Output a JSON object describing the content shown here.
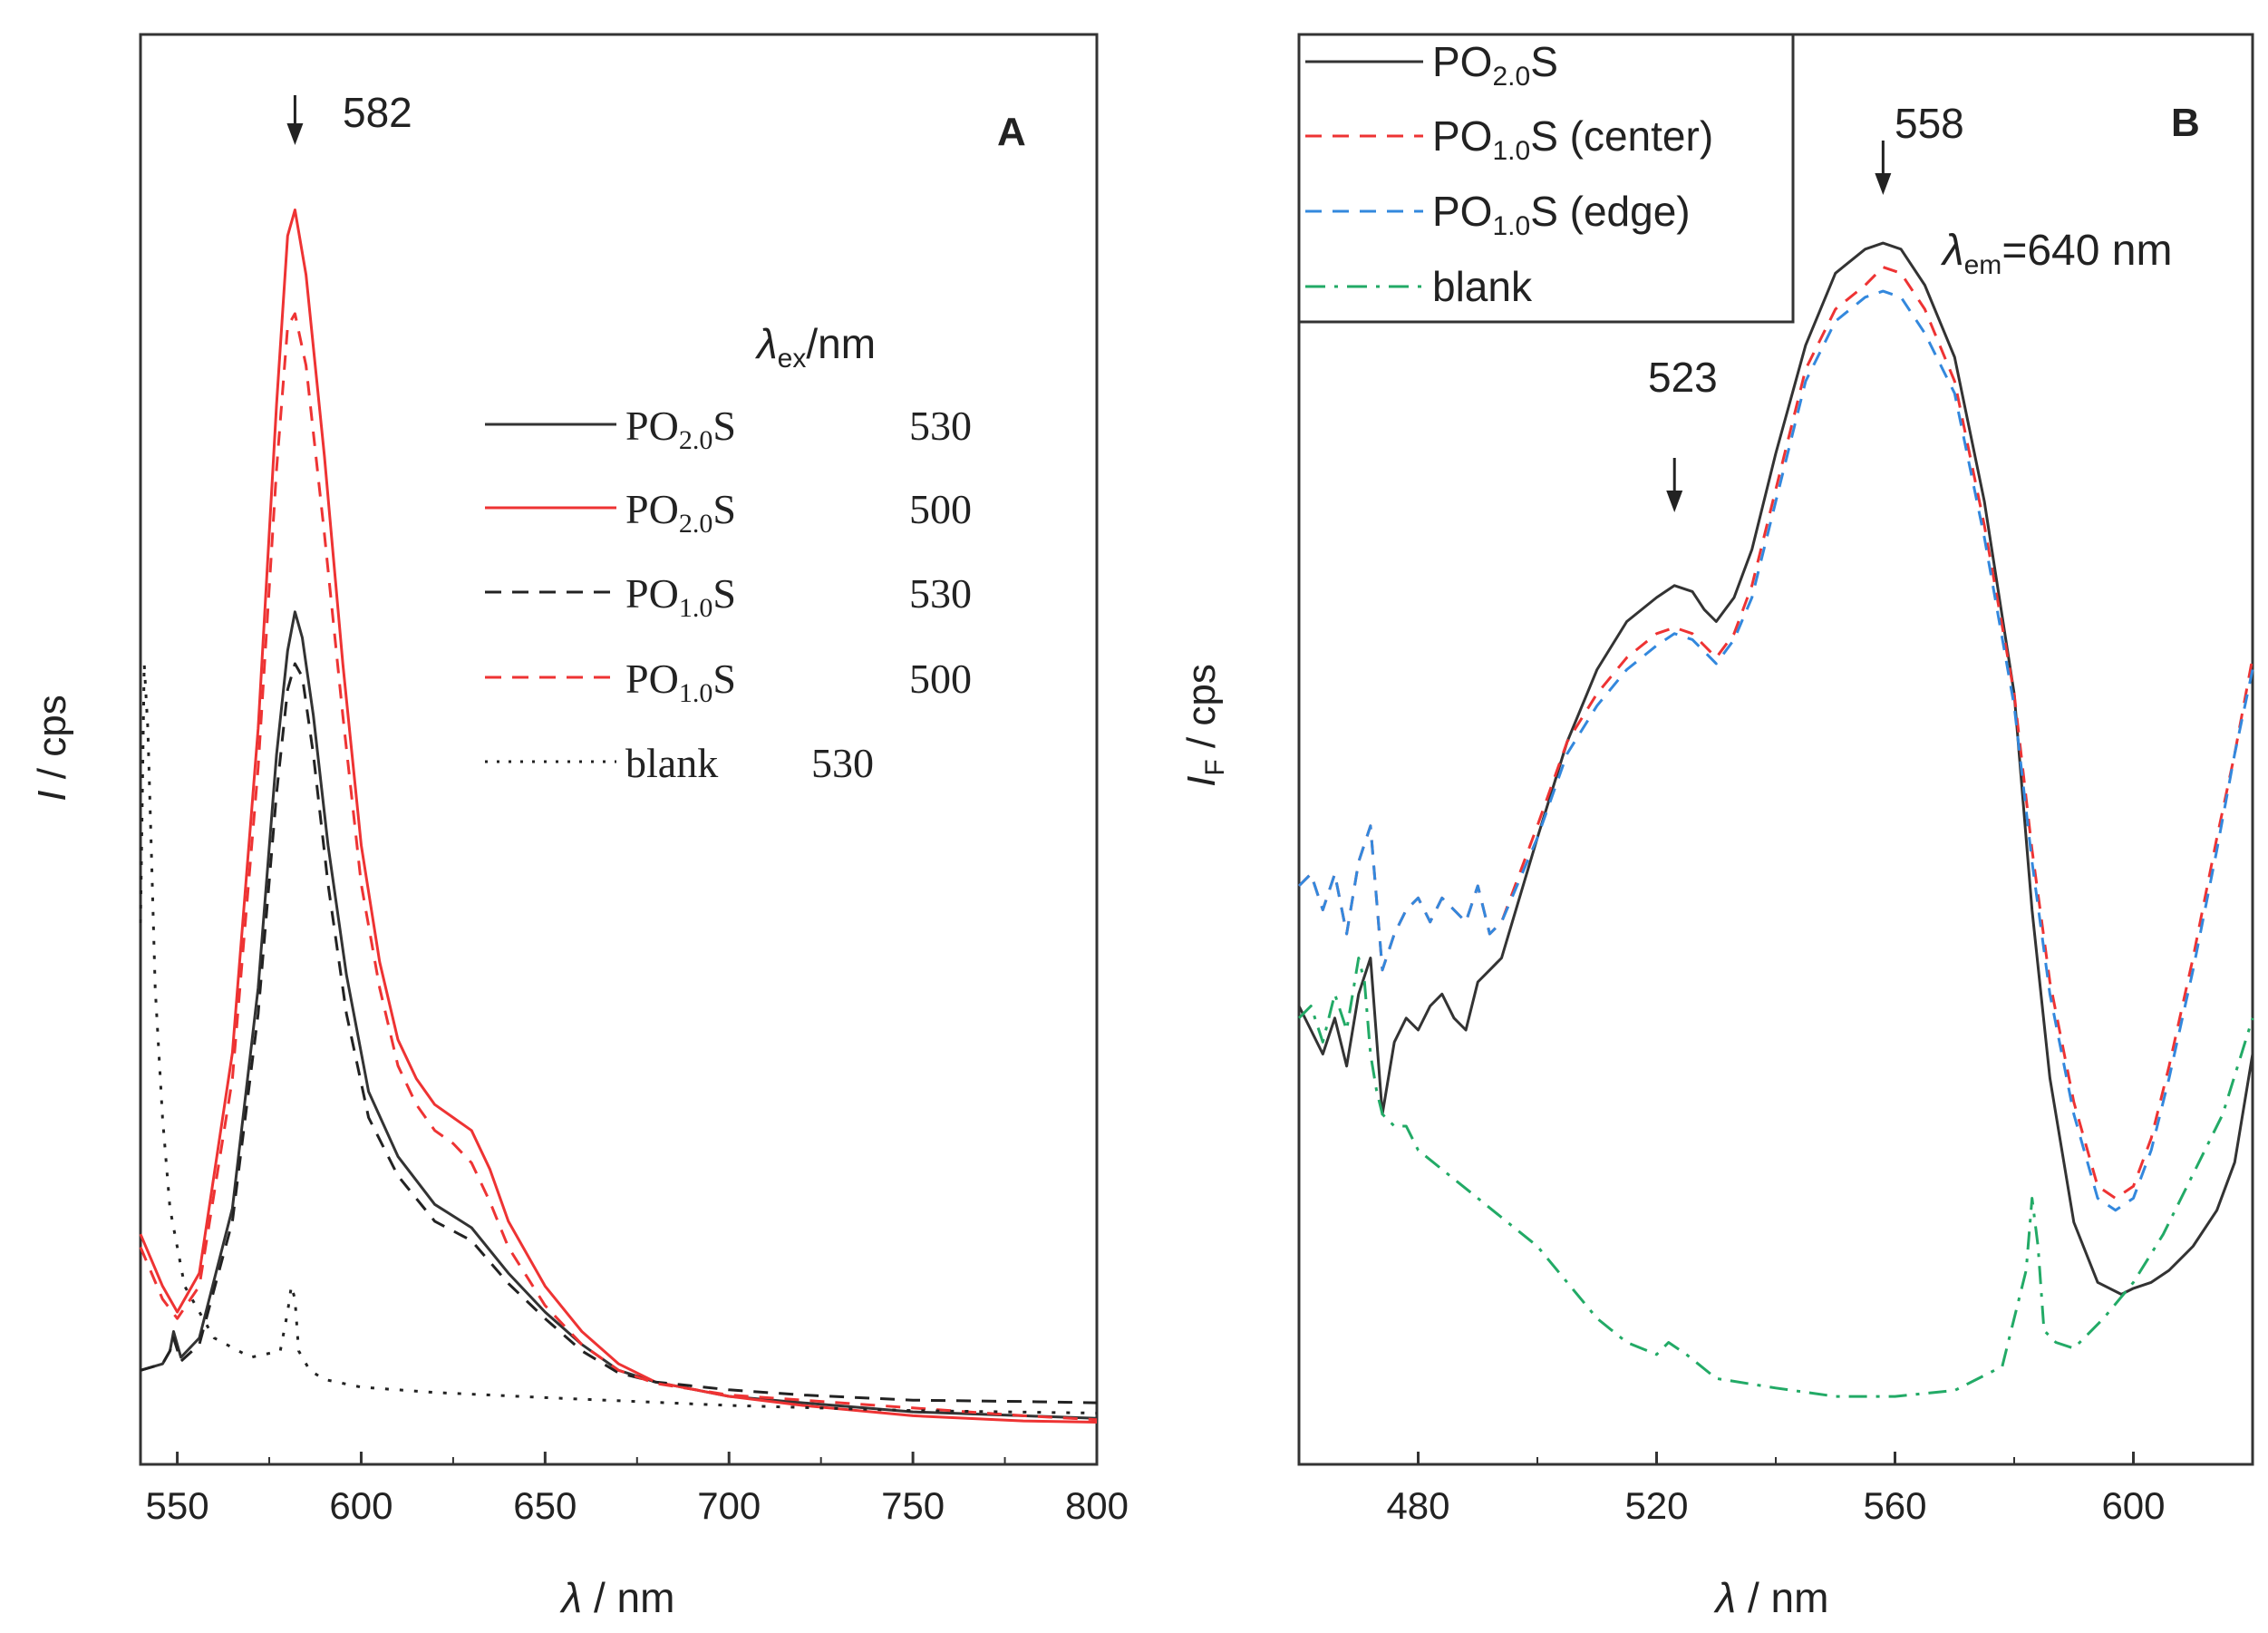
{
  "chart_data": [
    {
      "panel_letter": "A",
      "type": "line",
      "xlabel_symbol": "λ",
      "xlabel_unit": " / nm",
      "ylabel_symbol": "I",
      "ylabel_unit": " / cps",
      "xlim": [
        540,
        800
      ],
      "ylim": [
        0,
        100
      ],
      "y_tick_labels_shown": false,
      "x_ticks": [
        550,
        600,
        650,
        700,
        750,
        800
      ],
      "x_tick_labels": [
        "550",
        "600",
        "650",
        "700",
        "750",
        "800"
      ],
      "peak_annotation": {
        "text": "582",
        "x": 582
      },
      "legend_header": {
        "symbol": "λ",
        "sub": "ex",
        "text": "/nm"
      },
      "series": [
        {
          "name": "PO2.0S 530",
          "legend_main": "PO",
          "legend_sub": "2.0",
          "legend_tail": "S",
          "legend_value": "530",
          "color": "#333333",
          "dash": "solid",
          "x": [
            540,
            546,
            548,
            549,
            551,
            556,
            565,
            572,
            577,
            580,
            582,
            584,
            587,
            591,
            596,
            602,
            610,
            620,
            630,
            640,
            650,
            660,
            670,
            680,
            700,
            720,
            750,
            780,
            800
          ],
          "y": [
            5.5,
            6.0,
            7.0,
            8.5,
            6.5,
            8.0,
            18,
            35,
            53,
            61,
            64,
            62,
            56,
            46,
            36,
            27,
            22,
            18.3,
            16.5,
            13,
            10,
            7.5,
            5.5,
            4.6,
            3.5,
            3.0,
            2.3,
            2.0,
            1.8
          ]
        },
        {
          "name": "PO2.0S 500",
          "legend_main": "PO",
          "legend_sub": "2.0",
          "legend_tail": "S",
          "legend_value": "500",
          "color": "#ee3333",
          "dash": "solid",
          "x": [
            540,
            543,
            546,
            550,
            556,
            565,
            572,
            577,
            580,
            582,
            585,
            590,
            595,
            600,
            605,
            610,
            615,
            620,
            625,
            630,
            635,
            640,
            650,
            660,
            670,
            680,
            700,
            720,
            750,
            780,
            800
          ],
          "y": [
            16,
            14,
            12,
            10,
            13,
            30,
            55,
            80,
            93,
            95,
            90,
            76,
            60,
            46,
            37,
            31,
            28,
            26,
            25,
            24,
            21,
            17,
            12,
            8.5,
            6,
            4.6,
            3.5,
            2.8,
            2.0,
            1.6,
            1.5
          ]
        },
        {
          "name": "PO1.0S 530",
          "legend_main": "PO",
          "legend_sub": "1.0",
          "legend_tail": "S",
          "legend_value": "530",
          "color": "#222222",
          "dash": "8,6",
          "x": [
            540,
            546,
            548,
            549,
            551,
            556,
            565,
            572,
            577,
            580,
            582,
            584,
            587,
            591,
            596,
            602,
            610,
            620,
            630,
            640,
            650,
            660,
            670,
            680,
            700,
            720,
            750,
            780,
            800
          ],
          "y": [
            5.5,
            6.0,
            7.0,
            8.0,
            6.2,
            7.5,
            17,
            33,
            50,
            58,
            60,
            59,
            53,
            43,
            33,
            25,
            20.5,
            17,
            15.5,
            12.2,
            9.5,
            7.0,
            5.3,
            4.6,
            4.0,
            3.6,
            3.2,
            3.1,
            3.0
          ]
        },
        {
          "name": "PO1.0S 500",
          "legend_main": "PO",
          "legend_sub": "1.0",
          "legend_tail": "S",
          "legend_value": "500",
          "color": "#ee3333",
          "dash": "8,6",
          "x": [
            540,
            543,
            546,
            550,
            556,
            565,
            572,
            577,
            580,
            582,
            585,
            590,
            595,
            600,
            605,
            610,
            615,
            620,
            625,
            630,
            635,
            640,
            650,
            660,
            670,
            680,
            700,
            720,
            750,
            780,
            800
          ],
          "y": [
            15,
            13,
            11,
            9.5,
            12,
            28,
            52,
            75,
            86,
            87,
            83,
            70,
            56,
            43,
            35,
            29,
            26,
            24,
            23,
            21.5,
            18.5,
            15,
            10.5,
            7.5,
            5.5,
            4.5,
            3.6,
            3.2,
            2.6,
            2.0,
            1.7
          ]
        },
        {
          "name": "blank 530",
          "legend_main": "blank",
          "legend_sub": "",
          "legend_tail": "",
          "legend_value": "530",
          "color": "#222222",
          "dash": "2,6",
          "x": [
            540,
            541,
            542,
            543,
            544,
            546,
            548,
            552,
            560,
            570,
            578,
            580,
            581,
            582,
            583,
            586,
            590,
            600,
            620,
            650,
            700,
            750,
            800
          ],
          "y": [
            40,
            60,
            55,
            45,
            35,
            25,
            18,
            12,
            8,
            6.5,
            7,
            10,
            12,
            11,
            7,
            5.5,
            4.8,
            4.2,
            3.8,
            3.4,
            2.8,
            2.4,
            2.2
          ]
        }
      ]
    },
    {
      "panel_letter": "B",
      "type": "line",
      "xlabel_symbol": "λ",
      "xlabel_unit": " / nm",
      "ylabel_symbol": "I",
      "ylabel_sub": "F",
      "ylabel_unit": " / cps",
      "xlim": [
        460,
        620
      ],
      "ylim": [
        0,
        100
      ],
      "y_tick_labels_shown": false,
      "x_ticks": [
        480,
        520,
        560,
        600
      ],
      "x_tick_labels": [
        "480",
        "520",
        "560",
        "600"
      ],
      "peak_annotations": [
        {
          "text": "523",
          "x": 523
        },
        {
          "text": "558",
          "x": 558
        }
      ],
      "condition_label": {
        "symbol": "λ",
        "sub": "em",
        "text": "=640 nm"
      },
      "series": [
        {
          "name": "PO2.0S",
          "legend_main": "PO",
          "legend_sub": "2.0",
          "legend_tail": "S",
          "color": "#333333",
          "dash": "solid",
          "x": [
            460,
            462,
            464,
            466,
            468,
            470,
            472,
            474,
            476,
            478,
            480,
            482,
            484,
            486,
            488,
            490,
            492,
            494,
            500,
            505,
            510,
            515,
            520,
            523,
            526,
            528,
            530,
            533,
            536,
            540,
            545,
            550,
            555,
            558,
            561,
            565,
            570,
            575,
            580,
            583,
            586,
            590,
            594,
            598,
            600,
            603,
            606,
            610,
            614,
            617,
            620
          ],
          "y": [
            34,
            32,
            30,
            33,
            29,
            35,
            38,
            25,
            31,
            33,
            32,
            34,
            35,
            33,
            32,
            36,
            37,
            38,
            48,
            56,
            62,
            66,
            68,
            69,
            68.5,
            67,
            66,
            68,
            72,
            80,
            89,
            95,
            97,
            97.5,
            97,
            94,
            88,
            76,
            60,
            42,
            28,
            16,
            11,
            10,
            10.5,
            11,
            12,
            14,
            17,
            21,
            30
          ]
        },
        {
          "name": "PO1.0S (center)",
          "legend_main": "PO",
          "legend_sub": "1.0",
          "legend_tail": "S (center)",
          "color": "#ee3333",
          "dash": "8,6",
          "x": [
            460,
            462,
            464,
            466,
            468,
            470,
            472,
            474,
            476,
            478,
            480,
            482,
            484,
            486,
            488,
            490,
            492,
            494,
            500,
            505,
            510,
            515,
            520,
            523,
            526,
            528,
            530,
            533,
            536,
            540,
            545,
            550,
            555,
            558,
            561,
            565,
            570,
            575,
            580,
            583,
            586,
            590,
            594,
            597,
            600,
            603,
            606,
            610,
            614,
            617,
            620
          ],
          "y": [
            44,
            45,
            42,
            45,
            40,
            46,
            49,
            37,
            40,
            42,
            43,
            41,
            43,
            42,
            41,
            44,
            40,
            41,
            49,
            56,
            60,
            63,
            65,
            65.5,
            65,
            64,
            63,
            65,
            69,
            77,
            87,
            92,
            94,
            95.5,
            95,
            92,
            86,
            74,
            60,
            47,
            36,
            26,
            19,
            18,
            19,
            23,
            29,
            38,
            48,
            55,
            63
          ]
        },
        {
          "name": "PO1.0S (edge)",
          "legend_main": "PO",
          "legend_sub": "1.0",
          "legend_tail": "S (edge)",
          "color": "#3388dd",
          "dash": "8,6",
          "x": [
            460,
            462,
            464,
            466,
            468,
            470,
            472,
            474,
            476,
            478,
            480,
            482,
            484,
            486,
            488,
            490,
            492,
            494,
            500,
            505,
            510,
            515,
            520,
            523,
            526,
            528,
            530,
            533,
            536,
            540,
            545,
            550,
            555,
            558,
            561,
            565,
            570,
            575,
            580,
            583,
            586,
            590,
            594,
            597,
            600,
            603,
            606,
            610,
            614,
            617,
            620
          ],
          "y": [
            44,
            45,
            42,
            45,
            40,
            46,
            49,
            37,
            40,
            42,
            43,
            41,
            43,
            42,
            41,
            44,
            40,
            41,
            48,
            55,
            59,
            62,
            64,
            65,
            64.5,
            63.5,
            62.5,
            64.5,
            68,
            76,
            86,
            91,
            93,
            93.5,
            93,
            90,
            85,
            73,
            59,
            46,
            35,
            25,
            18,
            17,
            18,
            22,
            28,
            37,
            47,
            55,
            62
          ]
        },
        {
          "name": "blank",
          "legend_main": "blank",
          "legend_sub": "",
          "legend_tail": "",
          "color": "#22aa66",
          "dash": "10,5,2,5",
          "x": [
            460,
            462,
            464,
            466,
            468,
            470,
            471,
            472,
            473,
            474,
            476,
            478,
            480,
            485,
            490,
            495,
            500,
            505,
            510,
            515,
            520,
            522,
            525,
            530,
            540,
            550,
            560,
            570,
            578,
            582,
            583,
            584,
            585,
            587,
            590,
            595,
            600,
            605,
            610,
            615,
            620
          ],
          "y": [
            33,
            34,
            31,
            35,
            32,
            38,
            36,
            30,
            27,
            25,
            24,
            24,
            22,
            20,
            18,
            16,
            14,
            11,
            8,
            6,
            5,
            6,
            5,
            3,
            2.2,
            1.5,
            1.5,
            2,
            4,
            12,
            18,
            14,
            7,
            6,
            5.5,
            8,
            11,
            15,
            20,
            25,
            33
          ]
        }
      ]
    }
  ]
}
